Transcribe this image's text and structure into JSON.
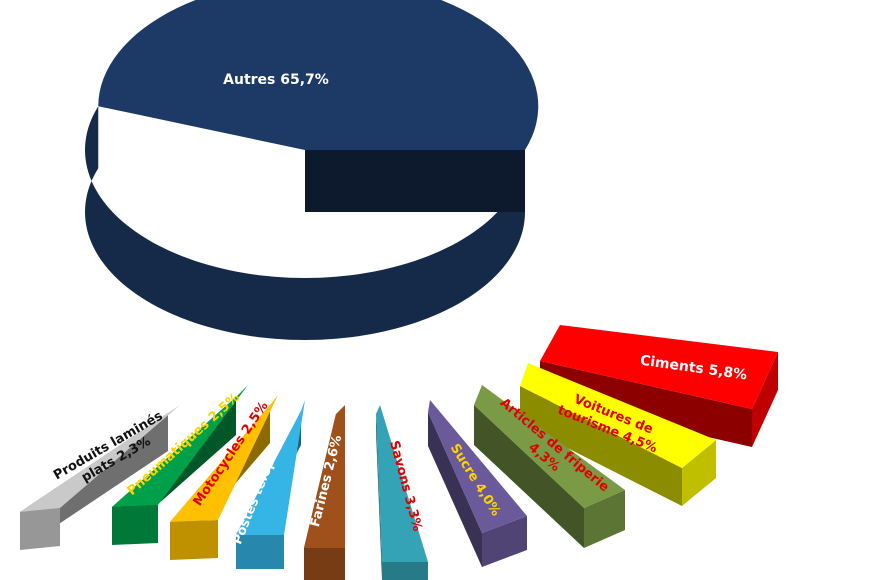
{
  "chart_data": {
    "type": "pie",
    "title": "",
    "slices": [
      {
        "label": "Autres",
        "value": 65.7,
        "text": "Autres 65,7%",
        "color": "#1d3a66",
        "text_color": "#ffffff"
      },
      {
        "label": "Ciments",
        "value": 5.8,
        "text": "Ciments  5,8%",
        "color": "#ff0000",
        "text_color": "#ffffff"
      },
      {
        "label": "Voitures de tourisme",
        "value": 4.5,
        "text": "Voitures de tourisme 4,5%",
        "color": "#ffff00",
        "text_color": "#e00000"
      },
      {
        "label": "Articles de friperie",
        "value": 4.3,
        "text": "Articles de friperie 4,3%",
        "color": "#7a9a45",
        "text_color": "#e00000"
      },
      {
        "label": "Sucre",
        "value": 4.0,
        "text": "Sucre 4,0%",
        "color": "#6a5a9a",
        "text_color": "#ffd200"
      },
      {
        "label": "Savons",
        "value": 3.3,
        "text": "Savons 3,3%",
        "color": "#34a3b5",
        "text_color": "#e00000"
      },
      {
        "label": "Farines",
        "value": 2.6,
        "text": "Farines 2,6%",
        "color": "#a0501a",
        "text_color": "#ffffff"
      },
      {
        "label": "Postes téléphoniques",
        "value": 2.5,
        "text": "Postes téléphoniques",
        "color": "#35b4e6",
        "text_color": "#ffffff"
      },
      {
        "label": "Motocycles",
        "value": 2.5,
        "text": "Motocycles 2,5%",
        "color": "#ffc000",
        "text_color": "#e00000"
      },
      {
        "label": "Pneumatiques",
        "value": 2.5,
        "text": "Pneumatiques 2,5%",
        "color": "#00a04a",
        "text_color": "#ffd200"
      },
      {
        "label": "Produits laminés plats",
        "value": 2.3,
        "text": "Produits laminés plats 2,3%",
        "color": "#c9c9c9",
        "text_color": "#111111"
      }
    ]
  }
}
